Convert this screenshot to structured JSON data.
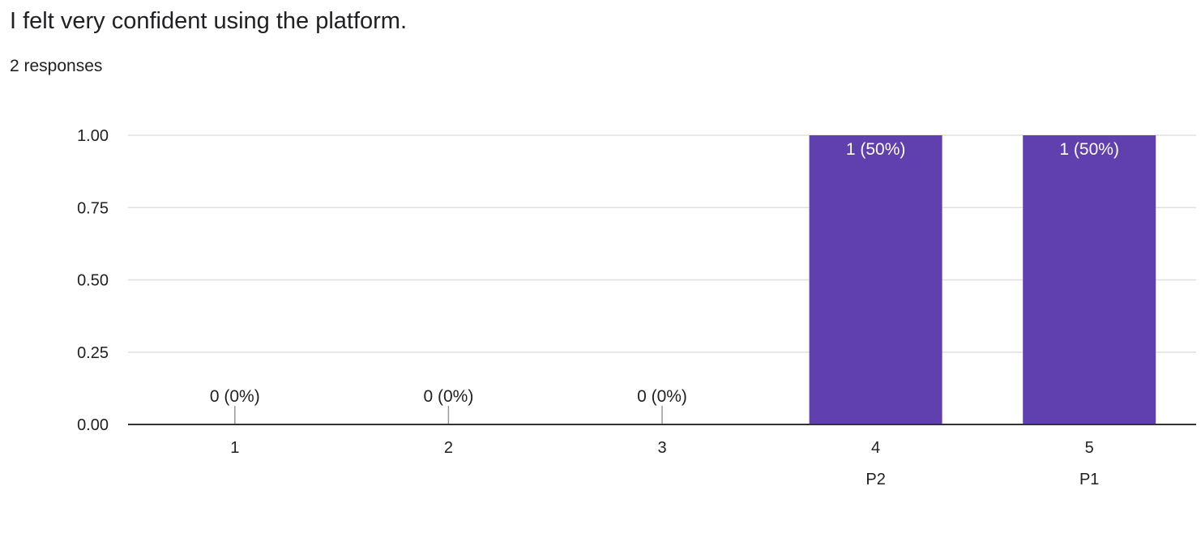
{
  "question": {
    "title": "I felt very confident using the platform.",
    "response_count": "2 responses"
  },
  "chart_data": {
    "type": "bar",
    "categories": [
      "1",
      "2",
      "3",
      "4",
      "5"
    ],
    "sublabels": [
      "",
      "",
      "",
      "P2",
      "P1"
    ],
    "values": [
      0,
      0,
      0,
      1,
      1
    ],
    "data_labels": [
      "0 (0%)",
      "0 (0%)",
      "0 (0%)",
      "1 (50%)",
      "1 (50%)"
    ],
    "ylim": [
      0,
      1
    ],
    "yticks": [
      0,
      0.25,
      0.5,
      0.75,
      1
    ],
    "ytick_labels": [
      "0.00",
      "0.25",
      "0.50",
      "0.75",
      "1.00"
    ],
    "grid": true,
    "xlabel": "",
    "ylabel": "",
    "colors": {
      "bar": "#6040ae",
      "bar_label_inside": "#ffffff",
      "label": "#202124",
      "axis": "#333333",
      "grid": "#e0e0e0",
      "zero_stub": "#999999"
    }
  }
}
